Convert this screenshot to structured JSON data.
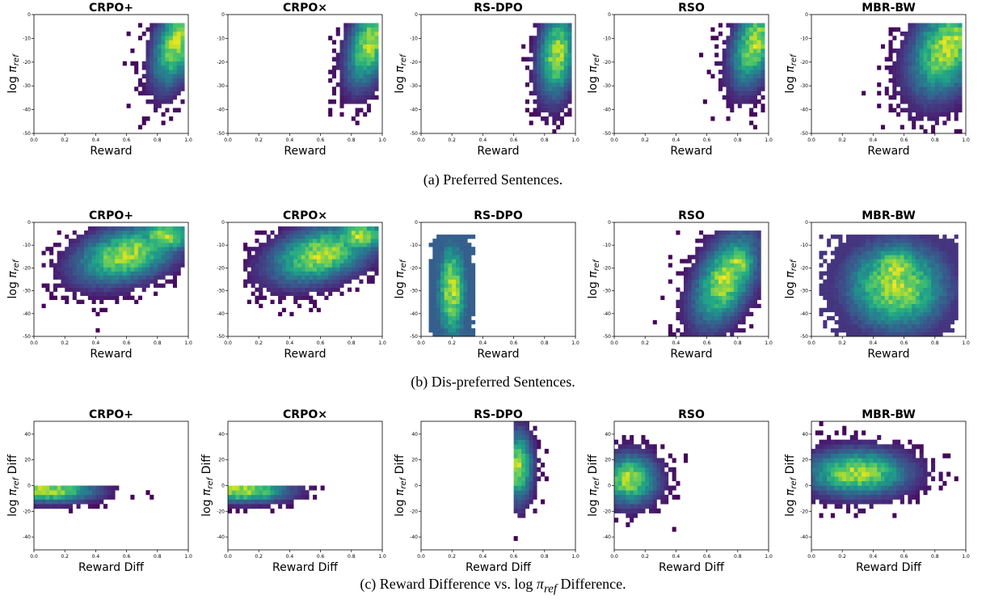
{
  "chart_data": [
    {
      "row": 0,
      "col": 0,
      "type": "heatmap",
      "title": "CRPO+",
      "xlabel": "Reward",
      "ylabel": "log π_ref",
      "xlim": [
        0,
        1
      ],
      "ylim": [
        -50,
        0
      ],
      "xticks": [
        "0.0",
        "0.2",
        "0.4",
        "0.6",
        "0.8",
        "1.0"
      ],
      "yticks": [
        "-50",
        "-40",
        "-30",
        "-20",
        "-10",
        "0"
      ],
      "center": [
        0.92,
        -12
      ],
      "spread": [
        0.1,
        11
      ],
      "tilt": 50,
      "support": {
        "x": [
          0.5,
          0.98
        ],
        "y": [
          -50,
          -3
        ]
      },
      "hot": [
        0.93,
        -12
      ]
    },
    {
      "row": 0,
      "col": 1,
      "type": "heatmap",
      "title": "CRPO×",
      "xlabel": "Reward",
      "ylabel": "",
      "xlim": [
        0,
        1
      ],
      "ylim": [
        -50,
        0
      ],
      "xticks": [
        "0.0",
        "0.2",
        "0.4",
        "0.6",
        "0.8",
        "1.0"
      ],
      "yticks": [
        "-50",
        "-40",
        "-30",
        "-20",
        "-10",
        "0"
      ],
      "center": [
        0.92,
        -12
      ],
      "spread": [
        0.1,
        11
      ],
      "tilt": 50,
      "support": {
        "x": [
          0.5,
          0.98
        ],
        "y": [
          -50,
          -3
        ]
      },
      "hot": [
        0.93,
        -12
      ]
    },
    {
      "row": 0,
      "col": 2,
      "type": "heatmap",
      "title": "RS-DPO",
      "xlabel": "Reward",
      "ylabel": "log π_ref",
      "xlim": [
        0,
        1
      ],
      "ylim": [
        -50,
        0
      ],
      "xticks": [
        "0.0",
        "0.2",
        "0.4",
        "0.6",
        "0.8",
        "1.0"
      ],
      "yticks": [
        "-50",
        "-40",
        "-30",
        "-20",
        "-10",
        "0"
      ],
      "center": [
        0.88,
        -17
      ],
      "spread": [
        0.08,
        12
      ],
      "tilt": 30,
      "support": {
        "x": [
          0.62,
          0.98
        ],
        "y": [
          -50,
          -3
        ]
      },
      "hot": [
        0.9,
        -15
      ]
    },
    {
      "row": 0,
      "col": 3,
      "type": "heatmap",
      "title": "RSO",
      "xlabel": "Reward",
      "ylabel": "log π_ref",
      "xlim": [
        0,
        1
      ],
      "ylim": [
        -50,
        0
      ],
      "xticks": [
        "0.0",
        "0.2",
        "0.4",
        "0.6",
        "0.8",
        "1.0"
      ],
      "yticks": [
        "-50",
        "-40",
        "-30",
        "-20",
        "-10",
        "0"
      ],
      "center": [
        0.91,
        -12
      ],
      "spread": [
        0.1,
        11
      ],
      "tilt": 50,
      "support": {
        "x": [
          0.45,
          0.98
        ],
        "y": [
          -50,
          -3
        ]
      },
      "hot": [
        0.93,
        -10
      ]
    },
    {
      "row": 0,
      "col": 4,
      "type": "heatmap",
      "title": "MBR-BW",
      "xlabel": "Reward",
      "ylabel": "log π_ref",
      "xlim": [
        0,
        1
      ],
      "ylim": [
        -50,
        0
      ],
      "xticks": [
        "0.0",
        "0.2",
        "0.4",
        "0.6",
        "0.8",
        "1.0"
      ],
      "yticks": [
        "-50",
        "-40",
        "-30",
        "-20",
        "-10",
        "0"
      ],
      "center": [
        0.88,
        -14
      ],
      "spread": [
        0.16,
        13
      ],
      "tilt": 30,
      "support": {
        "x": [
          0.25,
          0.98
        ],
        "y": [
          -50,
          -3
        ]
      },
      "hot": [
        0.93,
        -10
      ]
    },
    {
      "row": 1,
      "col": 0,
      "type": "heatmap",
      "title": "CRPO+",
      "xlabel": "Reward",
      "ylabel": "log π_ref",
      "xlim": [
        0,
        1
      ],
      "ylim": [
        -50,
        0
      ],
      "xticks": [
        "0.0",
        "0.2",
        "0.4",
        "0.6",
        "0.8",
        "1.0"
      ],
      "yticks": [
        "-50",
        "-40",
        "-30",
        "-20",
        "-10",
        "0"
      ],
      "center": [
        0.6,
        -14
      ],
      "spread": [
        0.22,
        8
      ],
      "tilt": 14,
      "support": {
        "x": [
          0.05,
          0.97
        ],
        "y": [
          -48,
          -1
        ]
      },
      "hot": [
        0.85,
        -6
      ]
    },
    {
      "row": 1,
      "col": 1,
      "type": "heatmap",
      "title": "CRPO×",
      "xlabel": "Reward",
      "ylabel": "",
      "xlim": [
        0,
        1
      ],
      "ylim": [
        -50,
        0
      ],
      "xticks": [
        "0.0",
        "0.2",
        "0.4",
        "0.6",
        "0.8",
        "1.0"
      ],
      "yticks": [
        "-50",
        "-40",
        "-30",
        "-20",
        "-10",
        "0"
      ],
      "center": [
        0.6,
        -14
      ],
      "spread": [
        0.22,
        8
      ],
      "tilt": 14,
      "support": {
        "x": [
          0.1,
          0.97
        ],
        "y": [
          -48,
          -1
        ]
      },
      "hot": [
        0.85,
        -6
      ]
    },
    {
      "row": 1,
      "col": 2,
      "type": "heatmap",
      "title": "RS-DPO",
      "xlabel": "Reward",
      "ylabel": "log π_ref",
      "xlim": [
        0,
        1
      ],
      "ylim": [
        -50,
        0
      ],
      "xticks": [
        "0.0",
        "0.2",
        "0.4",
        "0.6",
        "0.8",
        "1.0"
      ],
      "yticks": [
        "-50",
        "-40",
        "-30",
        "-20",
        "-10",
        "0"
      ],
      "center": [
        0.2,
        -30
      ],
      "spread": [
        0.07,
        16
      ],
      "tilt": 0,
      "support": {
        "x": [
          0.05,
          0.35
        ],
        "y": [
          -50,
          -5
        ]
      },
      "hot": [
        0.22,
        -32
      ],
      "floor": 0.3
    },
    {
      "row": 1,
      "col": 3,
      "type": "heatmap",
      "title": "RSO",
      "xlabel": "Reward",
      "ylabel": "log π_ref",
      "xlim": [
        0,
        1
      ],
      "ylim": [
        -50,
        0
      ],
      "xticks": [
        "0.0",
        "0.2",
        "0.4",
        "0.6",
        "0.8",
        "1.0"
      ],
      "yticks": [
        "-50",
        "-40",
        "-30",
        "-20",
        "-10",
        "0"
      ],
      "center": [
        0.72,
        -25
      ],
      "spread": [
        0.14,
        12
      ],
      "tilt": 45,
      "support": {
        "x": [
          0.2,
          0.96
        ],
        "y": [
          -50,
          -3
        ]
      },
      "hot": [
        0.8,
        -18
      ]
    },
    {
      "row": 1,
      "col": 4,
      "type": "heatmap",
      "title": "MBR-BW",
      "xlabel": "Reward",
      "ylabel": "log π_ref",
      "xlim": [
        0,
        1
      ],
      "ylim": [
        -50,
        0
      ],
      "xticks": [
        "0.0",
        "0.2",
        "0.4",
        "0.6",
        "0.8",
        "1.0"
      ],
      "yticks": [
        "-50",
        "-40",
        "-30",
        "-20",
        "-10",
        "0"
      ],
      "center": [
        0.55,
        -28
      ],
      "spread": [
        0.22,
        13
      ],
      "tilt": 0,
      "support": {
        "x": [
          0.05,
          0.95
        ],
        "y": [
          -50,
          -5
        ]
      },
      "hot": [
        0.55,
        -20
      ],
      "floor": 0.15
    },
    {
      "row": 2,
      "col": 0,
      "type": "heatmap",
      "title": "CRPO+",
      "xlabel": "Reward Diff",
      "ylabel": "log π_ref Diff",
      "xlim": [
        0,
        1
      ],
      "ylim": [
        -50,
        50
      ],
      "xticks": [
        "0.0",
        "0.2",
        "0.4",
        "0.6",
        "0.8",
        "1.0"
      ],
      "yticks": [
        "-40",
        "-20",
        "0",
        "20",
        "40"
      ],
      "center": [
        0.1,
        -4
      ],
      "spread": [
        0.2,
        6
      ],
      "tilt": 0,
      "support": {
        "x": [
          0,
          0.8
        ],
        "y": [
          -35,
          0
        ]
      },
      "hot": [
        0.05,
        -3
      ]
    },
    {
      "row": 2,
      "col": 1,
      "type": "heatmap",
      "title": "CRPO×",
      "xlabel": "Reward Diff",
      "ylabel": "log π_ref Diff",
      "xlim": [
        0,
        1
      ],
      "ylim": [
        -50,
        50
      ],
      "xticks": [
        "0.0",
        "0.2",
        "0.4",
        "0.6",
        "0.8",
        "1.0"
      ],
      "yticks": [
        "-40",
        "-20",
        "0",
        "20",
        "40"
      ],
      "center": [
        0.1,
        -4
      ],
      "spread": [
        0.2,
        6
      ],
      "tilt": 0,
      "support": {
        "x": [
          0,
          0.8
        ],
        "y": [
          -35,
          0
        ]
      },
      "hot": [
        0.05,
        -3
      ]
    },
    {
      "row": 2,
      "col": 2,
      "type": "heatmap",
      "title": "RS-DPO",
      "xlabel": "Reward Diff",
      "ylabel": "log π_ref Diff",
      "xlim": [
        0,
        1
      ],
      "ylim": [
        -50,
        50
      ],
      "xticks": [
        "0.0",
        "0.2",
        "0.4",
        "0.6",
        "0.8",
        "1.0"
      ],
      "yticks": [
        "-40",
        "-20",
        "0",
        "20",
        "40"
      ],
      "center": [
        0.63,
        15
      ],
      "spread": [
        0.06,
        18
      ],
      "tilt": 0,
      "support": {
        "x": [
          0.6,
          1.0
        ],
        "y": [
          -48,
          50
        ]
      },
      "hot": [
        0.62,
        18
      ]
    },
    {
      "row": 2,
      "col": 3,
      "type": "heatmap",
      "title": "RSO",
      "xlabel": "Reward Diff",
      "ylabel": "log π_ref Diff",
      "xlim": [
        0,
        1
      ],
      "ylim": [
        -50,
        50
      ],
      "xticks": [
        "0.0",
        "0.2",
        "0.4",
        "0.6",
        "0.8",
        "1.0"
      ],
      "yticks": [
        "-40",
        "-20",
        "0",
        "20",
        "40"
      ],
      "center": [
        0.1,
        5
      ],
      "spread": [
        0.12,
        13
      ],
      "tilt": 0,
      "support": {
        "x": [
          0,
          0.6
        ],
        "y": [
          -35,
          45
        ]
      },
      "hot": [
        0.08,
        5
      ]
    },
    {
      "row": 2,
      "col": 4,
      "type": "heatmap",
      "title": "MBR-BW",
      "xlabel": "Reward Diff",
      "ylabel": "log π_ref Diff",
      "xlim": [
        0,
        1
      ],
      "ylim": [
        -50,
        50
      ],
      "xticks": [
        "0.0",
        "0.2",
        "0.4",
        "0.6",
        "0.8",
        "1.0"
      ],
      "yticks": [
        "-40",
        "-20",
        "0",
        "20",
        "40"
      ],
      "center": [
        0.3,
        10
      ],
      "spread": [
        0.22,
        12
      ],
      "tilt": 0,
      "support": {
        "x": [
          0,
          0.98
        ],
        "y": [
          -45,
          50
        ]
      },
      "hot": [
        0.25,
        8
      ]
    }
  ],
  "captions": {
    "a": "(a) Preferred Sentences.",
    "b": "(b) Dis-preferred Sentences.",
    "c_prefix": "(c) Reward Difference vs. log",
    "c_math": "π",
    "c_sub": "ref",
    "c_suffix": " Difference."
  },
  "colormap": [
    "#440154",
    "#482475",
    "#414487",
    "#355f8d",
    "#2a788e",
    "#21918c",
    "#22a884",
    "#44bf70",
    "#7ad151",
    "#bddf26",
    "#fde725"
  ]
}
